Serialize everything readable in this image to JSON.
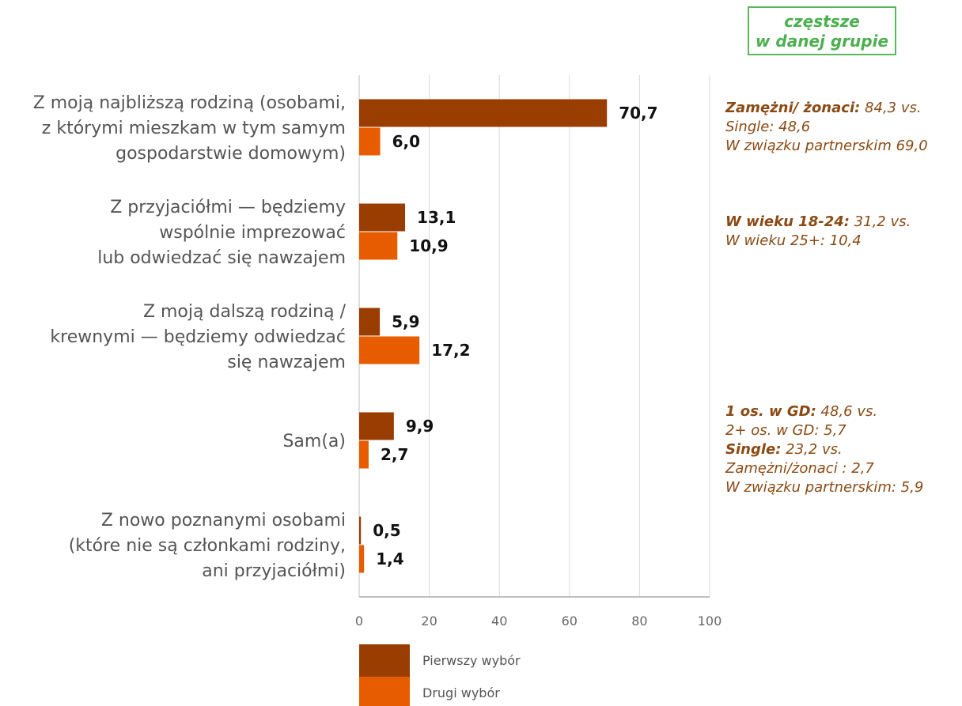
{
  "badge": {
    "line1": "częstsze",
    "line2": "w danej grupie"
  },
  "colors": {
    "first": "#993d00",
    "second": "#e85c00",
    "grid": "#d9d9d9",
    "axis": "#bfbfbf"
  },
  "chart_data": {
    "type": "bar",
    "orientation": "horizontal",
    "categories": [
      [
        "Z moją najbliższą rodziną (osobami,",
        "z którymi mieszkam w tym samym",
        "gospodarstwie domowym)"
      ],
      [
        "Z przyjaciółmi — będziemy",
        "wspólnie imprezować",
        "lub odwiedzać się nawzajem"
      ],
      [
        "Z moją dalszą rodziną /",
        "krewnymi — będziemy odwiedzać",
        "się nawzajem"
      ],
      [
        "Sam(a)"
      ],
      [
        "Z nowo poznanymi osobami",
        "(które nie są członkami rodziny,",
        "ani przyjaciółmi)"
      ]
    ],
    "series": [
      {
        "name": "Pierwszy wybór",
        "values": [
          70.7,
          13.1,
          5.9,
          9.9,
          0.5
        ],
        "labels": [
          "70,7",
          "13,1",
          "5,9",
          "9,9",
          "0,5"
        ]
      },
      {
        "name": "Drugi wybór",
        "values": [
          6.0,
          10.9,
          17.2,
          2.7,
          1.4
        ],
        "labels": [
          "6,0",
          "10,9",
          "17,2",
          "2,7",
          "1,4"
        ]
      }
    ],
    "xlim": [
      0,
      100
    ],
    "xticks": [
      0,
      20,
      40,
      60,
      80,
      100
    ],
    "grid": true,
    "legend": "bottom"
  },
  "notes": [
    [
      {
        "bold": "Zamężni/ żonaci:",
        "text": " 84,3 vs."
      },
      {
        "bold": "",
        "text": "Single: 48,6"
      },
      {
        "bold": "",
        "text": "W związku partnerskim 69,0"
      }
    ],
    [
      {
        "bold": "W wieku 18-24:",
        "text": " 31,2 vs."
      },
      {
        "bold": "",
        "text": "W wieku 25+: 10,4"
      }
    ],
    [],
    [
      {
        "bold": "1 os. w GD:",
        "text": " 48,6 vs."
      },
      {
        "bold": "",
        "text": " 2+ os. w GD: 5,7"
      },
      {
        "bold": "Single:",
        "text": " 23,2 vs."
      },
      {
        "bold": "",
        "text": "Zamężni/żonaci : 2,7"
      },
      {
        "bold": "",
        "text": "W związku partnerskim: 5,9"
      }
    ],
    []
  ]
}
